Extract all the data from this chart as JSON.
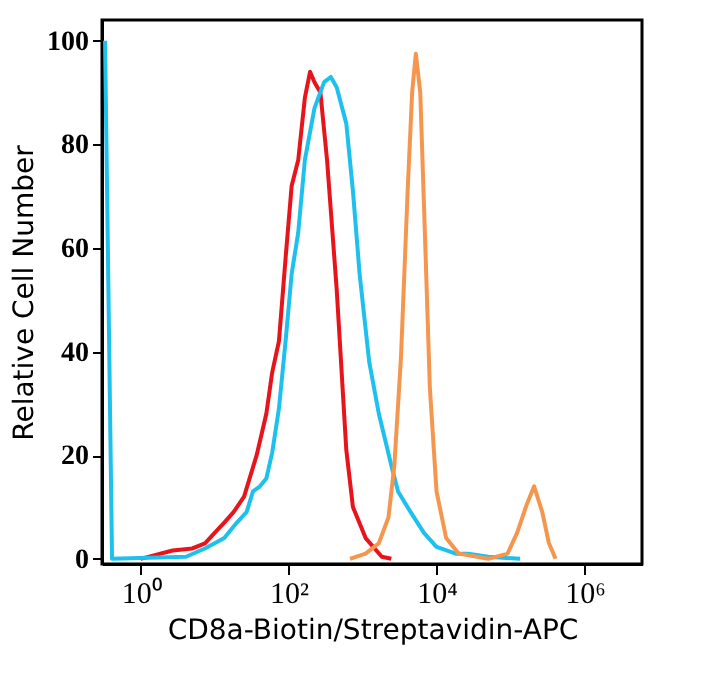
{
  "chart_data": {
    "type": "line",
    "xlabel": "CD8a-Biotin/Streptavidin-APC",
    "ylabel": "Relative Cell Number",
    "log": "x",
    "xlim": [
      0.3,
      6000000
    ],
    "xticks": [
      {
        "value": 1,
        "label": "10⁰"
      },
      {
        "value": 100,
        "label": "10²"
      },
      {
        "value": 10000,
        "label": "10⁴"
      },
      {
        "value": 1000000,
        "label": "10⁶"
      }
    ],
    "ylim": [
      -1,
      104
    ],
    "yticks": [
      0,
      20,
      40,
      60,
      80,
      100
    ],
    "grid": false,
    "legend": false,
    "marker": "none",
    "line_style": "solid",
    "series": [
      {
        "color": "#e8141c",
        "x": [
          1,
          2.7,
          5,
          7.4,
          10,
          13.5,
          18,
          25,
          37,
          50,
          60,
          74,
          91,
          110,
          135,
          166,
          195,
          224,
          269,
          331,
          447,
          603,
          741,
          1100,
          1820,
          2450
        ],
        "values": [
          0,
          1.6,
          2,
          3,
          5,
          7,
          9,
          12,
          20,
          28,
          36,
          42,
          58,
          72,
          77,
          89,
          94,
          92,
          90,
          77,
          52,
          21,
          10,
          4,
          0.4,
          0
        ]
      },
      {
        "color": "#1ec0ee",
        "x": [
          0.33,
          0.41,
          4.1,
          7.4,
          13.5,
          20,
          27,
          33,
          41,
          50,
          60,
          74,
          91,
          110,
          135,
          166,
          224,
          302,
          372,
          447,
          603,
          741,
          912,
          1230,
          1660,
          2450,
          3020,
          4470,
          6760,
          10000,
          18200,
          26900,
          50100,
          135000
        ],
        "values": [
          100,
          0,
          0.4,
          2,
          4,
          7,
          9,
          13,
          14,
          15.5,
          20.5,
          29,
          42,
          55,
          63,
          77,
          87,
          92,
          93,
          91,
          84,
          71,
          55,
          38,
          28,
          18,
          13,
          9,
          5,
          2.3,
          1,
          1,
          0.4,
          0
        ]
      },
      {
        "color": "#f5964f",
        "x": [
          676,
          1100,
          1660,
          2240,
          2690,
          3310,
          4070,
          4680,
          5250,
          6030,
          6920,
          8130,
          10000,
          13500,
          20000,
          50100,
          91200,
          123000,
          166000,
          209000,
          269000,
          331000,
          407000
        ],
        "values": [
          0,
          1,
          3,
          8,
          18,
          39,
          71,
          90,
          97.5,
          90,
          64,
          33,
          13,
          4,
          1,
          0,
          1,
          5,
          10.5,
          14,
          9,
          3,
          0
        ]
      }
    ]
  }
}
